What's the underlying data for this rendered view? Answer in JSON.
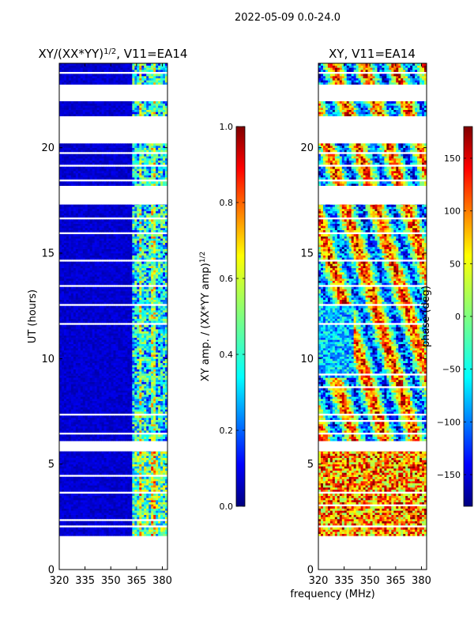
{
  "suptitle": "2022-05-09 0.0-24.0",
  "xlabel_shared": "frequency (MHz)",
  "chart_data": [
    {
      "type": "heatmap",
      "title_main": "XY/(XX*YY)",
      "title_sup": "1/2",
      "title_rest": ", V11=EA14",
      "ylabel": "UT (hours)",
      "xlim": [
        320,
        383
      ],
      "ylim": [
        0,
        24
      ],
      "x_ticks": [
        320,
        335,
        350,
        365,
        380
      ],
      "y_ticks": [
        0,
        5,
        10,
        15,
        20
      ],
      "x_tick_labels": [
        "320",
        "335",
        "350",
        "365",
        "380"
      ],
      "y_tick_labels": [
        "0",
        "5",
        "10",
        "15",
        "20"
      ],
      "data_windows_hours": [
        [
          1.6,
          5.6
        ],
        [
          6.1,
          17.3
        ],
        [
          18.2,
          20.2
        ],
        [
          21.5,
          22.2
        ],
        [
          23.0,
          24.0
        ]
      ],
      "flagged_hours": [
        2.0,
        2.3,
        3.0,
        3.6,
        4.4,
        6.4,
        7.0,
        7.3,
        8.6,
        9.2,
        11.6,
        12.5,
        13.4,
        14.6,
        15.9,
        16.6,
        18.4,
        19.1,
        19.7,
        22.5,
        23.5
      ],
      "dense_freq_range_mhz": [
        362,
        383
      ],
      "colorbar": {
        "label_main": "XY amp. / (XX*YY amp)",
        "label_sup": "1/2",
        "range": [
          0.0,
          1.0
        ],
        "ticks": [
          0.0,
          0.2,
          0.4,
          0.6,
          0.8,
          1.0
        ],
        "tick_labels": [
          "0.0",
          "0.2",
          "0.4",
          "0.6",
          "0.8",
          "1.0"
        ]
      }
    },
    {
      "type": "heatmap",
      "title": "XY, V11=EA14",
      "xlim": [
        320,
        383
      ],
      "ylim": [
        0,
        24
      ],
      "x_ticks": [
        320,
        335,
        350,
        365,
        380
      ],
      "y_ticks": [
        0,
        5,
        10,
        15,
        20
      ],
      "x_tick_labels": [
        "320",
        "335",
        "350",
        "365",
        "380"
      ],
      "y_tick_labels": [
        "0",
        "5",
        "10",
        "15",
        "20"
      ],
      "data_windows_hours": [
        [
          1.6,
          5.6
        ],
        [
          6.1,
          17.3
        ],
        [
          18.2,
          20.2
        ],
        [
          21.5,
          22.2
        ],
        [
          23.0,
          24.0
        ]
      ],
      "colorbar": {
        "label": "phase (deg)",
        "range": [
          -180,
          180
        ],
        "ticks": [
          -150,
          -100,
          -50,
          0,
          50,
          100,
          150
        ],
        "tick_labels": [
          "−150",
          "−100",
          "−50",
          "0",
          "50",
          "100",
          "150"
        ]
      }
    }
  ],
  "colors": {
    "jet": [
      "#00007f",
      "#0000ff",
      "#007fff",
      "#00ffff",
      "#7fff7f",
      "#ffff00",
      "#ff7f00",
      "#ff0000",
      "#7f0000"
    ]
  }
}
